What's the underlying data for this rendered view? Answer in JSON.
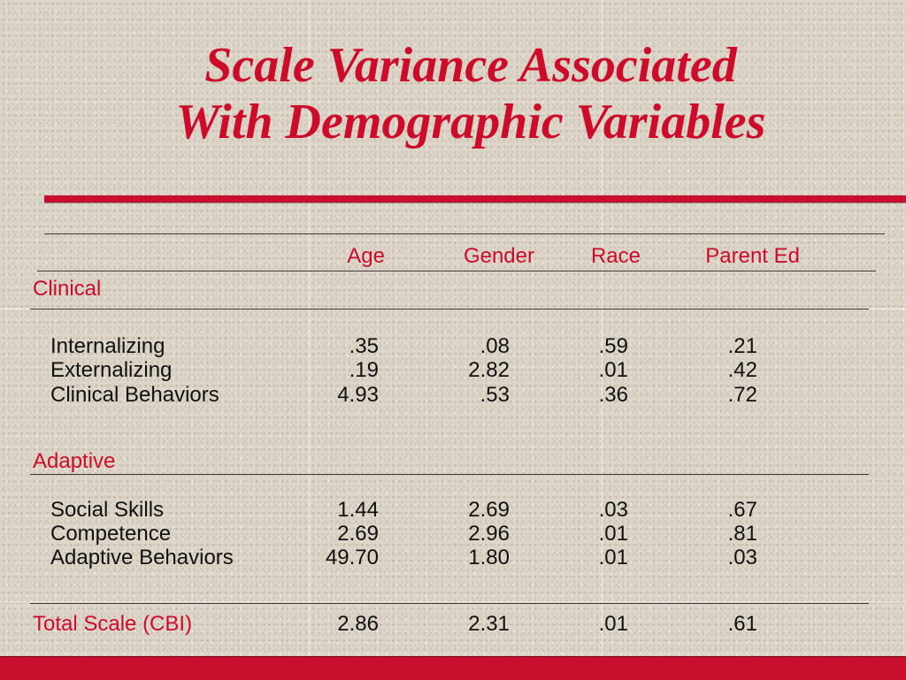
{
  "title": {
    "line1": "Scale Variance Associated",
    "line2": "With Demographic Variables"
  },
  "columns": [
    "Age",
    "Gender",
    "Race",
    "Parent Ed"
  ],
  "sections": {
    "clinical": {
      "heading": "Clinical",
      "rows": [
        {
          "label": "Internalizing",
          "values": [
            ".35",
            ".08",
            ".59",
            ".21"
          ]
        },
        {
          "label": "Externalizing",
          "values": [
            ".19",
            "2.82",
            ".01",
            ".42"
          ]
        },
        {
          "label": "Clinical Behaviors",
          "values": [
            "4.93",
            ".53",
            ".36",
            ".72"
          ]
        }
      ]
    },
    "adaptive": {
      "heading": "Adaptive",
      "rows": [
        {
          "label": "Social Skills",
          "values": [
            "1.44",
            "2.69",
            ".03",
            ".67"
          ]
        },
        {
          "label": "Competence",
          "values": [
            "2.69",
            "2.96",
            ".01",
            ".81"
          ]
        },
        {
          "label": "Adaptive Behaviors",
          "values": [
            "49.70",
            "1.80",
            ".01",
            ".03"
          ]
        }
      ]
    }
  },
  "total": {
    "label": "Total Scale (CBI)",
    "values": [
      "2.86",
      "2.31",
      ".01",
      ".61"
    ]
  },
  "colors": {
    "accent_red": "#cc0c2a",
    "background": "#ddd5c8"
  }
}
